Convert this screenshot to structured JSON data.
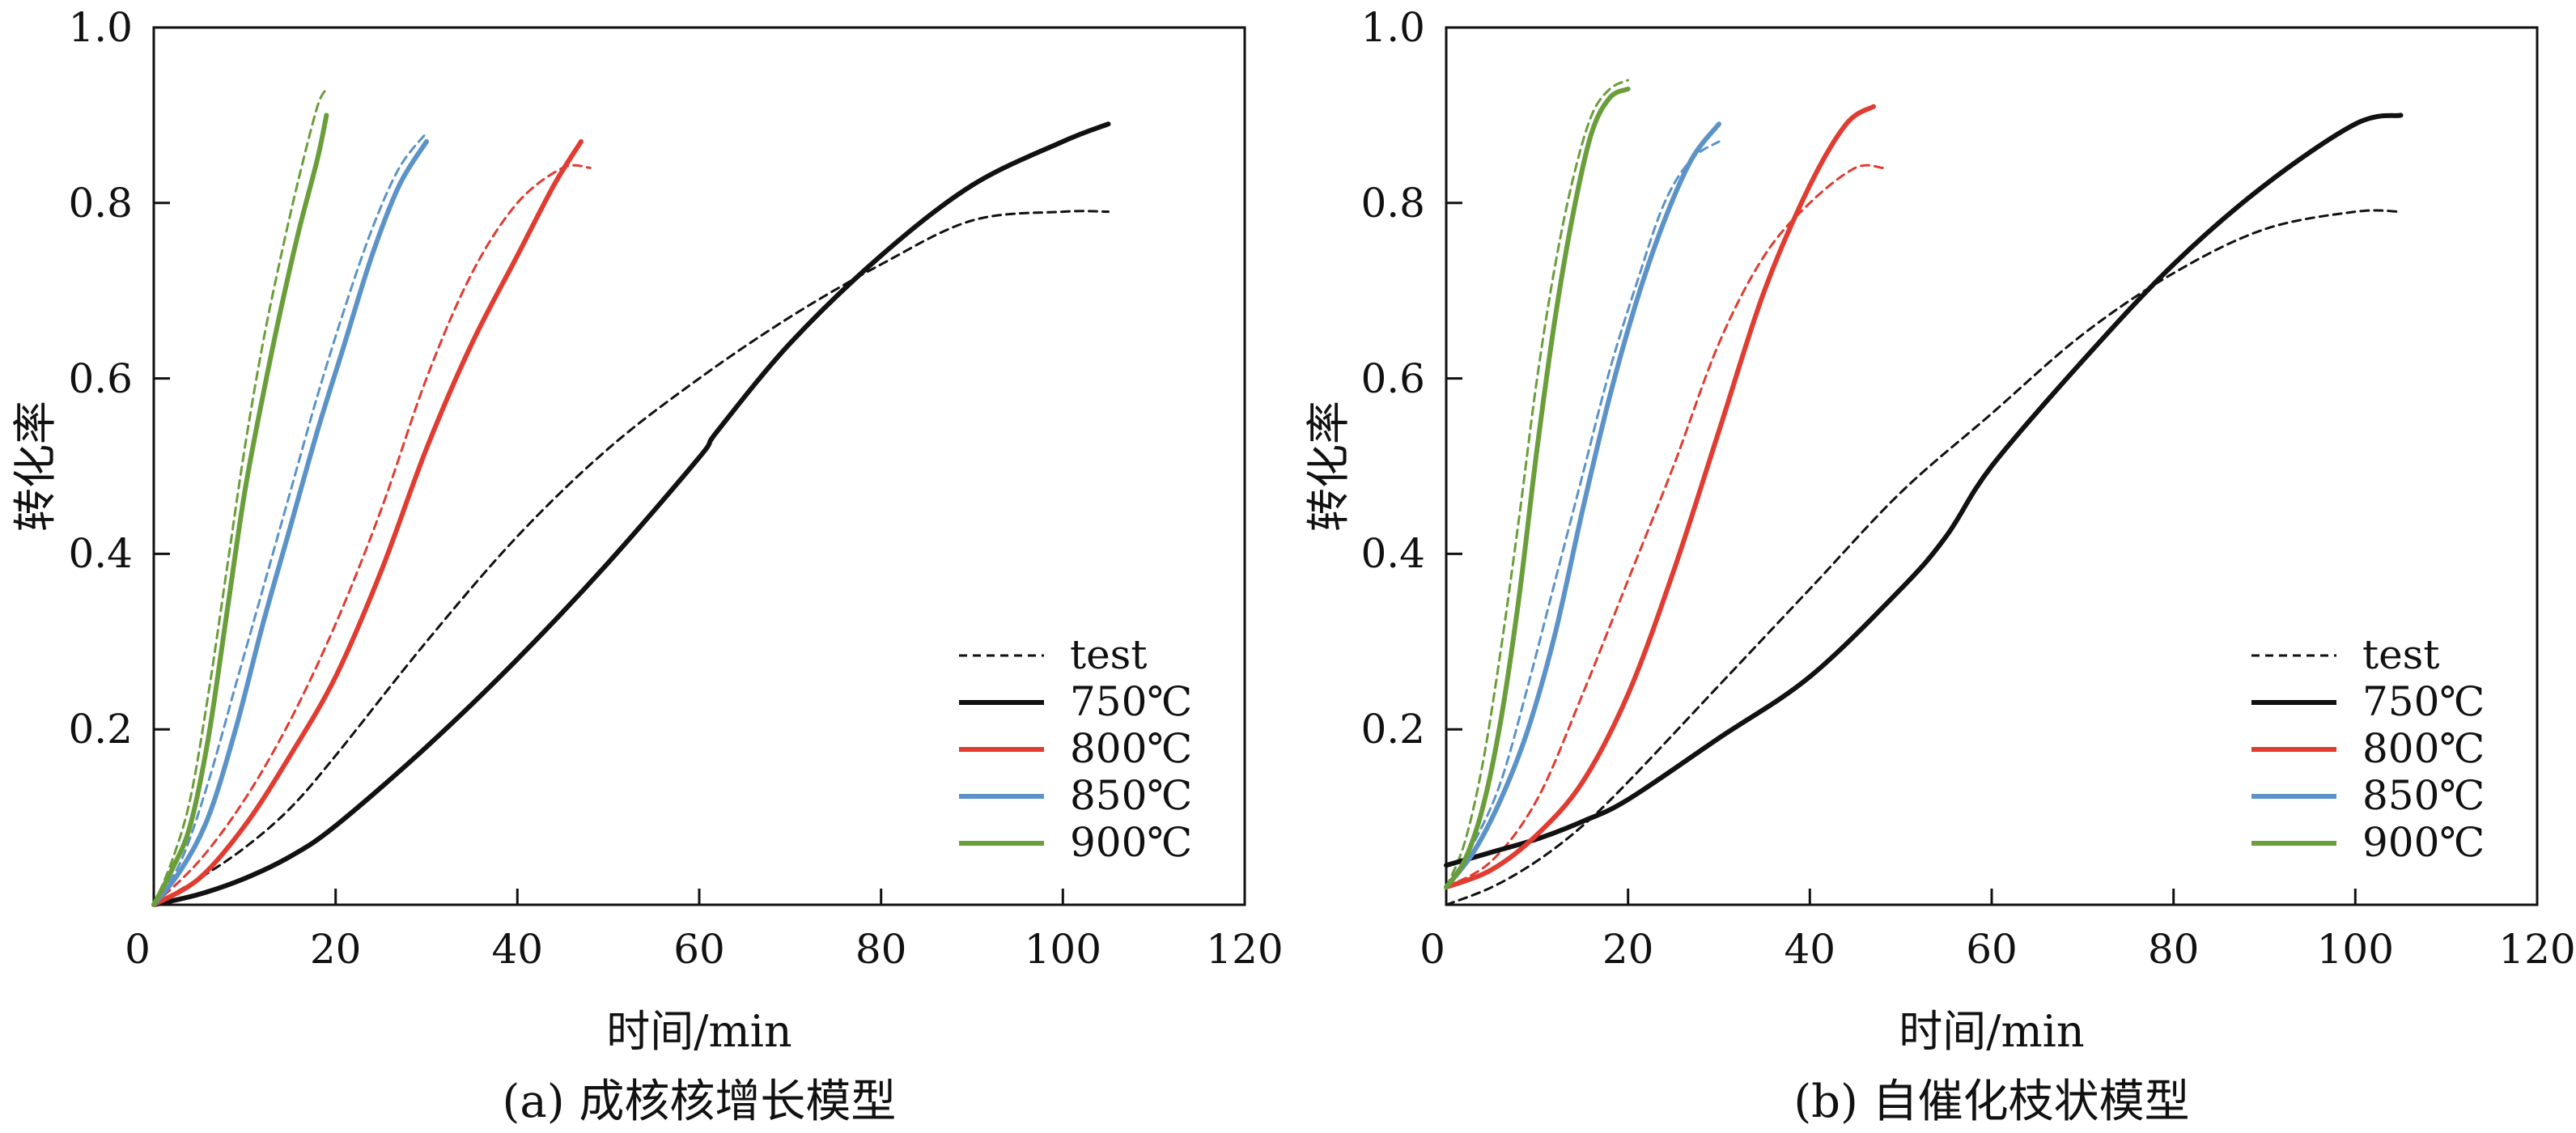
{
  "figure": {
    "colors": {
      "axis": "#111111",
      "background": "#ffffff"
    }
  },
  "chart_data": [
    {
      "type": "line",
      "title": "",
      "caption": "(a) 成核核增长模型",
      "xlabel": "时间/min",
      "ylabel": "转化率",
      "xlim": [
        0,
        120
      ],
      "ylim": [
        0,
        1.0
      ],
      "xticks": [
        "0",
        "20",
        "40",
        "60",
        "80",
        "100",
        "120"
      ],
      "yticks": [
        "0.2",
        "0.4",
        "0.6",
        "0.8",
        "1.0"
      ],
      "legend_position": "bottom-right",
      "legend": [
        "test",
        "750℃",
        "800℃",
        "850℃",
        "900℃"
      ],
      "series": [
        {
          "name": "750℃",
          "color": "#111111",
          "dashed": false,
          "x": [
            0,
            5,
            10,
            15,
            20,
            30,
            40,
            50,
            60,
            62,
            70,
            80,
            90,
            100,
            105
          ],
          "y": [
            0,
            0.012,
            0.03,
            0.055,
            0.09,
            0.18,
            0.28,
            0.39,
            0.51,
            0.54,
            0.64,
            0.74,
            0.82,
            0.87,
            0.89
          ]
        },
        {
          "name": "800℃",
          "color": "#e03c31",
          "dashed": false,
          "x": [
            0,
            5,
            10,
            15,
            20,
            25,
            30,
            35,
            40,
            44,
            47
          ],
          "y": [
            0,
            0.03,
            0.09,
            0.17,
            0.26,
            0.38,
            0.52,
            0.64,
            0.74,
            0.82,
            0.87
          ]
        },
        {
          "name": "850℃",
          "color": "#5b93c9",
          "dashed": false,
          "x": [
            0,
            3,
            6,
            9,
            12,
            15,
            18,
            21,
            24,
            27,
            30
          ],
          "y": [
            0,
            0.04,
            0.1,
            0.2,
            0.32,
            0.43,
            0.54,
            0.64,
            0.74,
            0.82,
            0.87
          ]
        },
        {
          "name": "900℃",
          "color": "#6a9e3a",
          "dashed": false,
          "x": [
            0,
            2,
            4,
            6,
            8,
            10,
            12,
            14,
            16,
            18,
            19
          ],
          "y": [
            0,
            0.04,
            0.09,
            0.19,
            0.33,
            0.47,
            0.58,
            0.68,
            0.77,
            0.85,
            0.9
          ]
        },
        {
          "name": "test 750℃",
          "color": "#111111",
          "dashed": true,
          "x": [
            0,
            5,
            10,
            15,
            20,
            30,
            40,
            50,
            60,
            70,
            80,
            90,
            100,
            105
          ],
          "y": [
            0,
            0.03,
            0.065,
            0.11,
            0.17,
            0.3,
            0.42,
            0.52,
            0.6,
            0.67,
            0.73,
            0.78,
            0.79,
            0.79
          ]
        },
        {
          "name": "test 800℃",
          "color": "#e03c31",
          "dashed": true,
          "x": [
            0,
            5,
            10,
            15,
            20,
            25,
            30,
            35,
            40,
            45,
            48
          ],
          "y": [
            0,
            0.05,
            0.12,
            0.21,
            0.32,
            0.45,
            0.6,
            0.72,
            0.8,
            0.84,
            0.84
          ]
        },
        {
          "name": "test 850℃",
          "color": "#5b93c9",
          "dashed": true,
          "x": [
            0,
            3,
            6,
            9,
            12,
            15,
            18,
            21,
            24,
            27,
            30
          ],
          "y": [
            0,
            0.05,
            0.14,
            0.25,
            0.36,
            0.47,
            0.58,
            0.68,
            0.77,
            0.84,
            0.88
          ]
        },
        {
          "name": "test 900℃",
          "color": "#6a9e3a",
          "dashed": true,
          "x": [
            0,
            2,
            4,
            6,
            8,
            10,
            12,
            14,
            16,
            18,
            19
          ],
          "y": [
            0,
            0.05,
            0.12,
            0.24,
            0.38,
            0.52,
            0.64,
            0.74,
            0.83,
            0.91,
            0.93
          ]
        }
      ]
    },
    {
      "type": "line",
      "title": "",
      "caption": "(b) 自催化枝状模型",
      "xlabel": "时间/min",
      "ylabel": "转化率",
      "xlim": [
        0,
        120
      ],
      "ylim": [
        0,
        1.0
      ],
      "xticks": [
        "0",
        "20",
        "40",
        "60",
        "80",
        "100",
        "120"
      ],
      "yticks": [
        "0.2",
        "0.4",
        "0.6",
        "0.8",
        "1.0"
      ],
      "legend_position": "bottom-right",
      "legend": [
        "test",
        "750℃",
        "800℃",
        "850℃",
        "900℃"
      ],
      "series": [
        {
          "name": "750℃",
          "color": "#111111",
          "dashed": false,
          "x": [
            0,
            5,
            10,
            15,
            20,
            30,
            40,
            50,
            55,
            60,
            70,
            80,
            90,
            100,
            105
          ],
          "y": [
            0.045,
            0.06,
            0.075,
            0.095,
            0.12,
            0.19,
            0.26,
            0.36,
            0.42,
            0.5,
            0.62,
            0.73,
            0.82,
            0.89,
            0.9
          ]
        },
        {
          "name": "800℃",
          "color": "#e03c31",
          "dashed": false,
          "x": [
            0,
            5,
            10,
            15,
            20,
            25,
            30,
            35,
            40,
            44,
            47
          ],
          "y": [
            0.02,
            0.04,
            0.08,
            0.14,
            0.24,
            0.38,
            0.54,
            0.7,
            0.82,
            0.89,
            0.91
          ]
        },
        {
          "name": "850℃",
          "color": "#5b93c9",
          "dashed": false,
          "x": [
            0,
            3,
            6,
            9,
            12,
            15,
            18,
            21,
            24,
            27,
            30
          ],
          "y": [
            0.02,
            0.06,
            0.12,
            0.2,
            0.31,
            0.45,
            0.58,
            0.69,
            0.78,
            0.85,
            0.89
          ]
        },
        {
          "name": "900℃",
          "color": "#6a9e3a",
          "dashed": false,
          "x": [
            0,
            2,
            4,
            6,
            8,
            10,
            12,
            14,
            16,
            18,
            20
          ],
          "y": [
            0.02,
            0.05,
            0.11,
            0.21,
            0.35,
            0.52,
            0.67,
            0.79,
            0.88,
            0.92,
            0.93
          ]
        },
        {
          "name": "test 750℃",
          "color": "#111111",
          "dashed": true,
          "x": [
            0,
            5,
            10,
            15,
            20,
            30,
            40,
            50,
            60,
            70,
            80,
            90,
            100,
            105
          ],
          "y": [
            0,
            0.02,
            0.05,
            0.09,
            0.14,
            0.25,
            0.36,
            0.47,
            0.56,
            0.65,
            0.72,
            0.77,
            0.79,
            0.79
          ]
        },
        {
          "name": "test 800℃",
          "color": "#e03c31",
          "dashed": true,
          "x": [
            0,
            5,
            10,
            15,
            20,
            25,
            30,
            35,
            40,
            45,
            48
          ],
          "y": [
            0.02,
            0.05,
            0.12,
            0.24,
            0.37,
            0.5,
            0.64,
            0.74,
            0.8,
            0.84,
            0.84
          ]
        },
        {
          "name": "test 850℃",
          "color": "#5b93c9",
          "dashed": true,
          "x": [
            0,
            3,
            6,
            9,
            12,
            15,
            18,
            21,
            24,
            27,
            30
          ],
          "y": [
            0.02,
            0.07,
            0.14,
            0.25,
            0.37,
            0.49,
            0.61,
            0.71,
            0.8,
            0.85,
            0.87
          ]
        },
        {
          "name": "test 900℃",
          "color": "#6a9e3a",
          "dashed": true,
          "x": [
            0,
            2,
            4,
            6,
            8,
            10,
            12,
            14,
            16,
            18,
            20
          ],
          "y": [
            0.02,
            0.07,
            0.16,
            0.29,
            0.44,
            0.6,
            0.73,
            0.83,
            0.9,
            0.93,
            0.94
          ]
        }
      ]
    }
  ]
}
